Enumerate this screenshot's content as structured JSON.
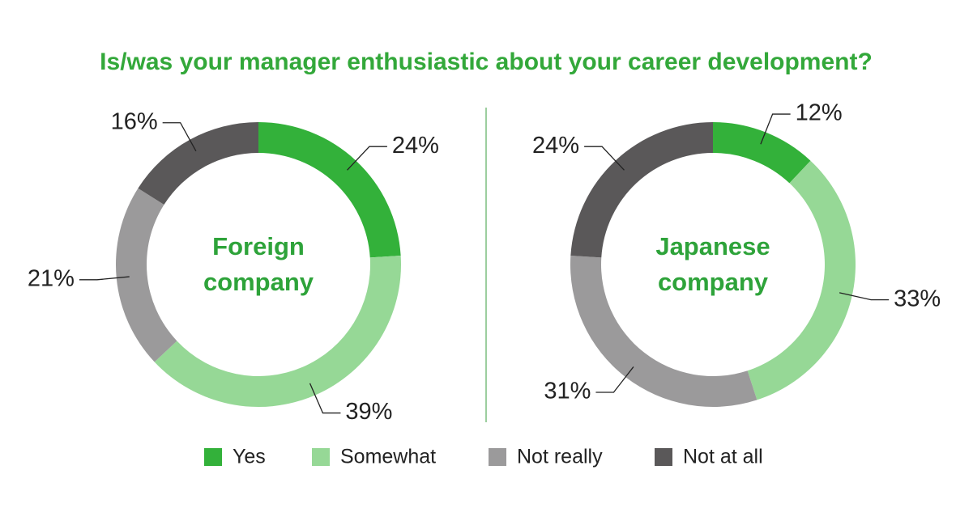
{
  "title": "Is/was your manager enthusiastic about your career development?",
  "chart_data": [
    {
      "type": "donut",
      "title": "Foreign company",
      "categories": [
        "Yes",
        "Somewhat",
        "Not really",
        "Not at all"
      ],
      "values": [
        24,
        39,
        21,
        16
      ],
      "value_labels": [
        "24%",
        "39%",
        "21%",
        "16%"
      ],
      "colors": [
        "#33b13a",
        "#96d896",
        "#9b9a9b",
        "#5a5859"
      ]
    },
    {
      "type": "donut",
      "title": "Japanese company",
      "categories": [
        "Yes",
        "Somewhat",
        "Not really",
        "Not at all"
      ],
      "values": [
        12,
        33,
        31,
        24
      ],
      "value_labels": [
        "12%",
        "33%",
        "31%",
        "24%"
      ],
      "colors": [
        "#33b13a",
        "#96d896",
        "#9b9a9b",
        "#5a5859"
      ]
    }
  ]
}
